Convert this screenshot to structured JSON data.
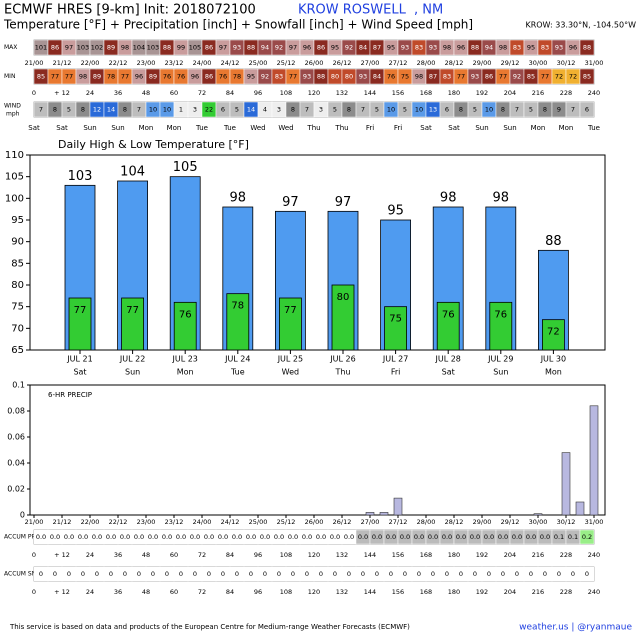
{
  "header": {
    "title": "ECMWF HRES [9-km] Init: 2018072100",
    "station": "KROW ROSWELL",
    "state": ", NM",
    "subtitle": "Temperature [°F] + Precipitation [inch] + Snowfall [inch] + Wind Speed [mph]",
    "location": "KROW: 33.30°N, -104.50°W"
  },
  "strips": {
    "dates": [
      "21/00",
      "21/12",
      "22/00",
      "22/12",
      "23/00",
      "23/12",
      "24/00",
      "24/12",
      "25/00",
      "25/12",
      "26/00",
      "26/12",
      "27/00",
      "27/12",
      "28/00",
      "28/12",
      "29/00",
      "29/12",
      "30/00",
      "30/12",
      "31/00"
    ],
    "hours": [
      "0",
      "+ 12",
      "24",
      "36",
      "48",
      "60",
      "72",
      "84",
      "96",
      "108",
      "120",
      "132",
      "144",
      "156",
      "168",
      "180",
      "192",
      "204",
      "216",
      "228",
      "240"
    ],
    "days": [
      "Sat",
      "Sat",
      "Sun",
      "Sun",
      "Mon",
      "Mon",
      "Tue",
      "Tue",
      "Wed",
      "Wed",
      "Thu",
      "Thu",
      "Fri",
      "Fri",
      "Sat",
      "Sat",
      "Sun",
      "Sun",
      "Mon",
      "Mon",
      "Tue"
    ],
    "max": {
      "label": "MAX",
      "values": [
        101,
        86,
        97,
        103,
        102,
        89,
        98,
        104,
        103,
        88,
        99,
        105,
        86,
        97,
        93,
        88,
        94,
        92,
        97,
        96,
        86,
        95,
        92,
        84,
        87,
        95,
        93,
        83,
        93,
        98,
        96,
        88,
        94,
        98,
        83,
        95,
        83,
        93,
        96,
        88
      ]
    },
    "min": {
      "label": "MIN",
      "values": [
        85,
        77,
        77,
        98,
        89,
        78,
        77,
        96,
        89,
        76,
        76,
        96,
        86,
        76,
        78,
        95,
        92,
        83,
        77,
        93,
        88,
        80,
        80,
        93,
        84,
        76,
        75,
        98,
        87,
        83,
        77,
        93,
        86,
        77,
        92,
        85,
        77,
        72,
        72,
        85
      ]
    },
    "wind": {
      "label": "WIND",
      "unit": "mph",
      "values": [
        7,
        8,
        5,
        8,
        12,
        14,
        8,
        7,
        10,
        10,
        1,
        3,
        22,
        6,
        5,
        14,
        4,
        3,
        8,
        7,
        3,
        5,
        8,
        7,
        5,
        10,
        5,
        10,
        13,
        6,
        8,
        5,
        10,
        8,
        7,
        5,
        8,
        9,
        7,
        6
      ]
    },
    "accum_precip": {
      "label": "ACCUM PRECIP",
      "values": [
        0,
        0,
        0,
        0,
        0,
        0,
        0,
        0,
        0,
        0,
        0,
        0,
        0,
        0,
        0,
        0,
        0,
        0,
        0,
        0,
        0,
        0,
        0,
        0.002,
        0.004,
        0.017,
        0.017,
        0.017,
        0.017,
        0.017,
        0.017,
        0.017,
        0.017,
        0.017,
        0.017,
        0.018,
        0.018,
        0.066,
        0.076,
        0.16
      ],
      "value_labels": [
        "0.0",
        "0.0",
        "0.0",
        "0.0",
        "0.0",
        "0.0",
        "0.0",
        "0.0",
        "0.0",
        "0.0",
        "0.0",
        "0.0",
        "0.0",
        "0.0",
        "0.0",
        "0.0",
        "0.0",
        "0.0",
        "0.0",
        "0.0",
        "0.0",
        "0.0",
        "0.0",
        "0.0",
        "0.0",
        "0.0",
        "0.0",
        "0.0",
        "0.0",
        "0.0",
        "0.0",
        "0.0",
        "0.0",
        "0.0",
        "0.0",
        "0.0",
        "0.0",
        "0.1",
        "0.1",
        "0.2"
      ]
    },
    "accum_snow": {
      "label": "ACCUM SNOW",
      "values": [
        0,
        0,
        0,
        0,
        0,
        0,
        0,
        0,
        0,
        0,
        0,
        0,
        0,
        0,
        0,
        0,
        0,
        0,
        0,
        0,
        0,
        0,
        0,
        0,
        0,
        0,
        0,
        0,
        0,
        0,
        0,
        0,
        0,
        0,
        0,
        0,
        0,
        0,
        0,
        0
      ]
    }
  },
  "chart_data": [
    {
      "type": "bar",
      "title": "Daily High & Low Temperature [°F]",
      "categories": [
        "JUL 21",
        "JUL 22",
        "JUL 23",
        "JUL 24",
        "JUL 25",
        "JUL 26",
        "JUL 27",
        "JUL 28",
        "JUL 29",
        "JUL 30"
      ],
      "day_labels": [
        "Sat",
        "Sun",
        "Mon",
        "Tue",
        "Wed",
        "Thu",
        "Fri",
        "Sat",
        "Sun",
        "Mon"
      ],
      "series": [
        {
          "color": "#4f9bf0",
          "values": [
            103,
            104,
            105,
            98,
            97,
            97,
            95,
            98,
            98,
            88
          ]
        },
        {
          "color": "#33cc33",
          "values": [
            77,
            77,
            76,
            78,
            77,
            80,
            75,
            76,
            76,
            72
          ]
        }
      ],
      "ylim": [
        65,
        110
      ],
      "yticks": [
        65,
        70,
        75,
        80,
        85,
        90,
        95,
        100,
        105,
        110
      ]
    },
    {
      "type": "precip",
      "title": "6-HR PRECIP",
      "color": "#b8b8e0",
      "x": [
        6,
        12,
        18,
        24,
        30,
        36,
        42,
        48,
        54,
        60,
        66,
        72,
        78,
        84,
        90,
        96,
        102,
        108,
        114,
        120,
        126,
        132,
        138,
        144,
        150,
        156,
        162,
        168,
        174,
        180,
        186,
        192,
        198,
        204,
        210,
        216,
        222,
        228,
        234,
        240
      ],
      "values": [
        0,
        0,
        0,
        0,
        0,
        0,
        0,
        0,
        0,
        0,
        0,
        0,
        0,
        0,
        0,
        0,
        0,
        0,
        0,
        0,
        0,
        0,
        0,
        0.002,
        0.002,
        0.013,
        0,
        0,
        0,
        0,
        0,
        0,
        0,
        0,
        0,
        0.001,
        0,
        0.048,
        0.01,
        0.084
      ],
      "xlim": [
        0,
        240
      ],
      "ylim": [
        0,
        0.1
      ],
      "yticks": [
        0,
        0.02,
        0.04,
        0.06,
        0.08,
        0.1
      ]
    }
  ],
  "footer": {
    "credit": "This service is based on data and products of the European Centre for Medium-range Weather Forecasts (ECMWF)",
    "brand": "weather.us | @ryanmaue"
  }
}
